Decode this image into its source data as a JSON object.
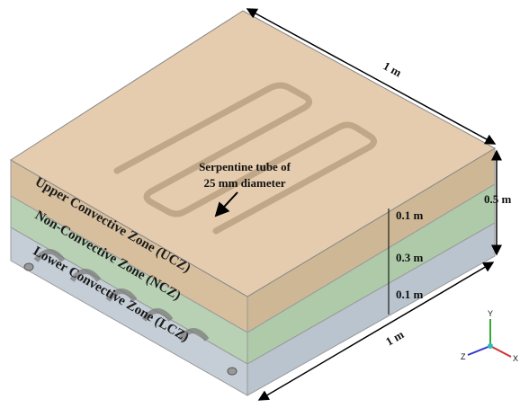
{
  "labels": {
    "top_length": "1 m",
    "height": "0.5 m",
    "serpentine": [
      "Serpentine tube of",
      "25 mm diameter"
    ],
    "zones": [
      "Upper Convective Zone (UCZ)",
      "Non-Convective Zone (NCZ)",
      "Lower Convective Zone (LCZ)"
    ],
    "zone_depths": [
      "0.1 m",
      "0.3 m",
      "0.1 m"
    ],
    "bottom_length": "1 m",
    "axes": [
      "Y",
      "Z",
      "X"
    ]
  }
}
